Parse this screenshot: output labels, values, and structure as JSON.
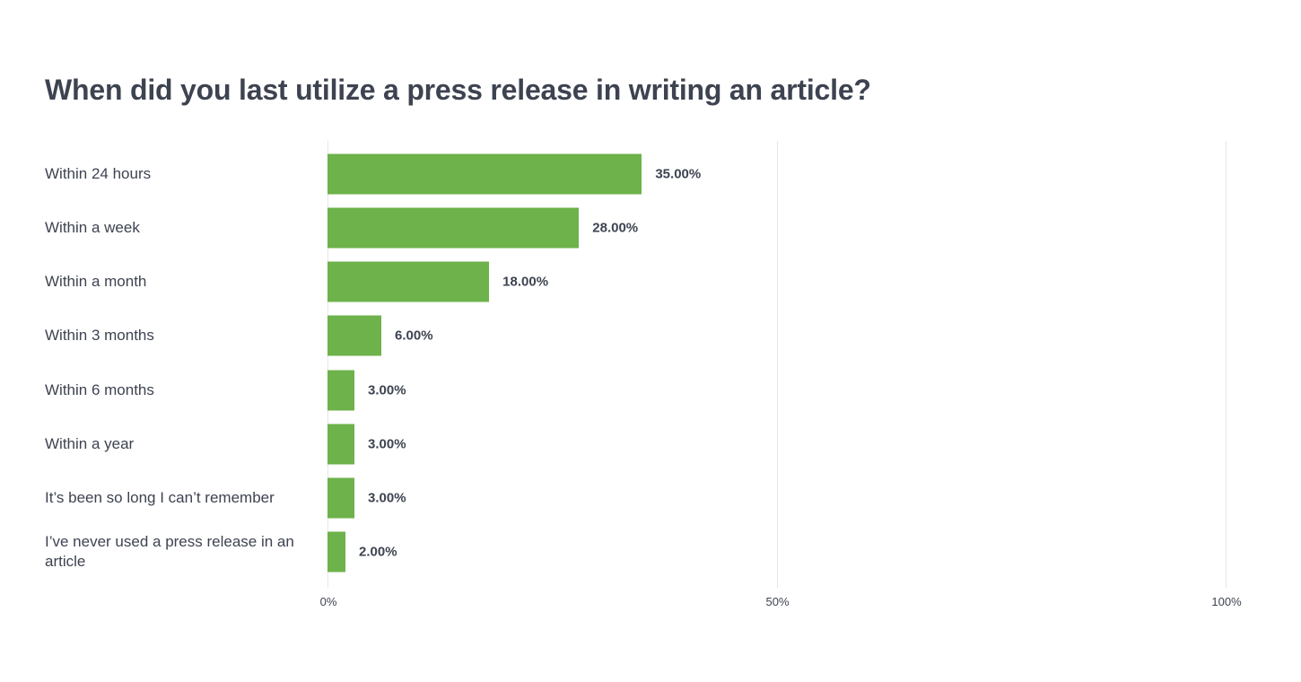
{
  "chart_data": {
    "type": "bar",
    "orientation": "horizontal",
    "title": "When did you last utilize a press release in writing an article?",
    "categories": [
      "Within 24 hours",
      "Within a week",
      "Within a month",
      "Within 3 months",
      "Within 6 months",
      "Within a year",
      "It’s been so long I can’t remember",
      "I’ve never used a press release in an article"
    ],
    "values": [
      35,
      28,
      18,
      6,
      3,
      3,
      3,
      2
    ],
    "value_labels": [
      "35.00%",
      "28.00%",
      "18.00%",
      "6.00%",
      "3.00%",
      "3.00%",
      "3.00%",
      "2.00%"
    ],
    "xlim": [
      0,
      100
    ],
    "xticks": [
      0,
      50,
      100
    ],
    "xtick_labels": [
      "0%",
      "50%",
      "100%"
    ],
    "grid": true,
    "bar_color": "#6db24a"
  }
}
